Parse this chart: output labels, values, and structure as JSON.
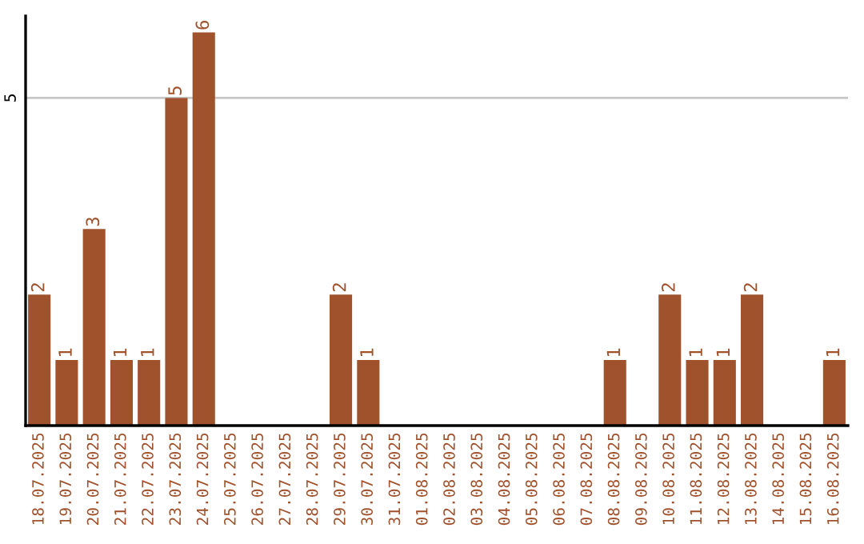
{
  "chart_data": {
    "type": "bar",
    "categories": [
      "18.07.2025",
      "19.07.2025",
      "20.07.2025",
      "21.07.2025",
      "22.07.2025",
      "23.07.2025",
      "24.07.2025",
      "25.07.2025",
      "26.07.2025",
      "27.07.2025",
      "28.07.2025",
      "29.07.2025",
      "30.07.2025",
      "31.07.2025",
      "01.08.2025",
      "02.08.2025",
      "03.08.2025",
      "04.08.2025",
      "05.08.2025",
      "06.08.2025",
      "07.08.2025",
      "08.08.2025",
      "09.08.2025",
      "10.08.2025",
      "11.08.2025",
      "12.08.2025",
      "13.08.2025",
      "14.08.2025",
      "15.08.2025",
      "16.08.2025"
    ],
    "values": [
      2,
      1,
      3,
      1,
      1,
      5,
      6,
      0,
      0,
      0,
      0,
      2,
      1,
      0,
      0,
      0,
      0,
      0,
      0,
      0,
      0,
      1,
      0,
      2,
      1,
      1,
      2,
      0,
      0,
      1
    ],
    "value_labels": [
      "2",
      "1",
      "3",
      "1",
      "1",
      "5",
      "6",
      null,
      null,
      null,
      null,
      "2",
      "1",
      null,
      null,
      null,
      null,
      null,
      null,
      null,
      null,
      "1",
      null,
      "2",
      "1",
      "1",
      "2",
      null,
      null,
      "1"
    ],
    "color": "#a0522d",
    "ylim": [
      0,
      6.25
    ],
    "yticks": [
      5
    ],
    "grid": "y"
  }
}
